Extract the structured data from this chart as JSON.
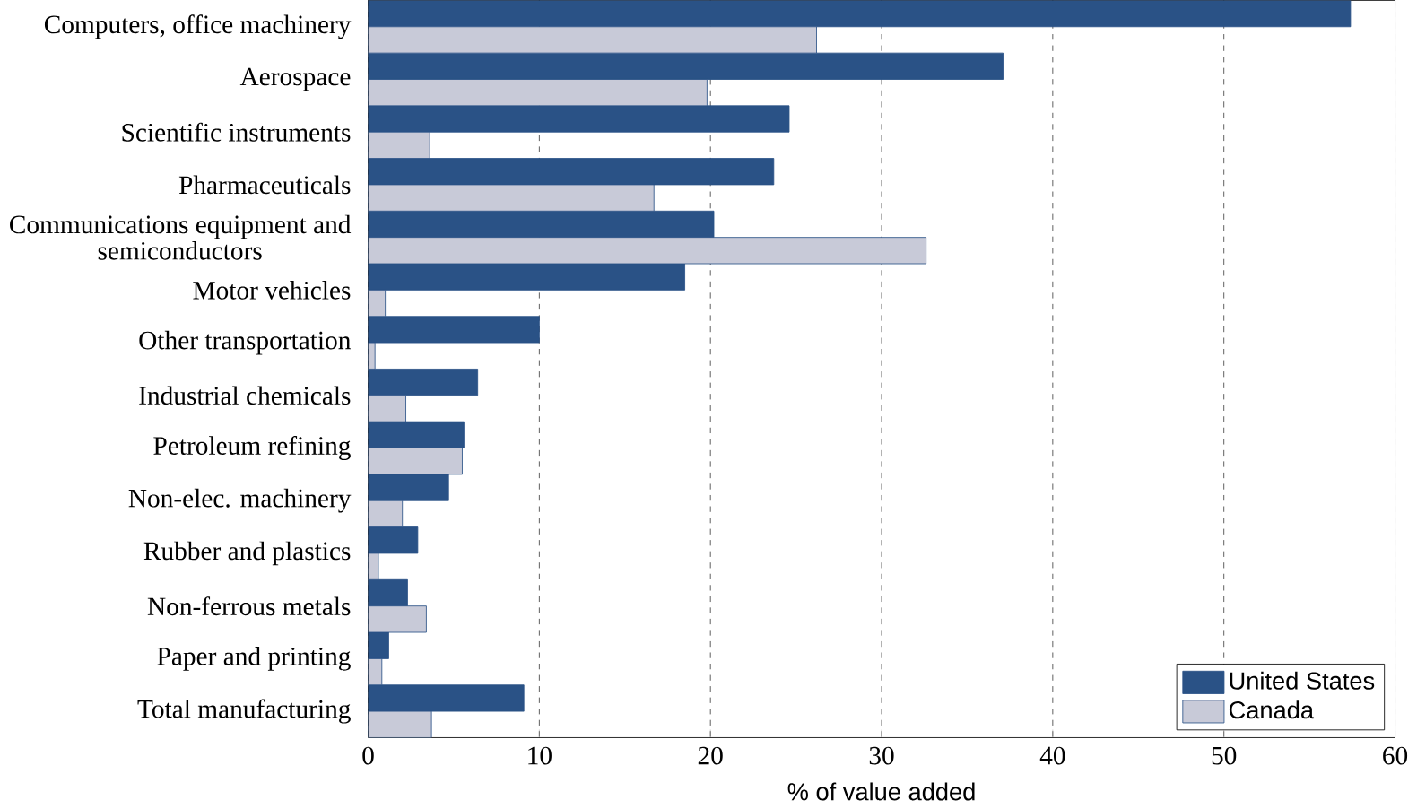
{
  "chart_data": {
    "type": "bar",
    "orientation": "horizontal",
    "xlabel": "% of value added",
    "categories": [
      "Computers, office machinery",
      "Aerospace",
      "Scientific instruments",
      "Pharmaceuticals",
      "Communications equipment and semiconductors",
      "Motor vehicles",
      "Other transportation",
      "Industrial chemicals",
      "Petroleum refining",
      "Non-elec. machinery",
      "Rubber and plastics",
      "Non-ferrous metals",
      "Paper and printing",
      "Total manufacturing"
    ],
    "series": [
      {
        "name": "United States",
        "color": "#2a5286",
        "values": [
          57.4,
          37.1,
          24.6,
          23.7,
          20.2,
          18.5,
          10.0,
          6.4,
          5.6,
          4.7,
          2.9,
          2.3,
          1.2,
          9.1
        ]
      },
      {
        "name": "Canada",
        "color": "#c8cad8",
        "values": [
          26.2,
          19.8,
          3.6,
          16.7,
          32.6,
          1.0,
          0.4,
          2.2,
          5.5,
          2.0,
          0.6,
          3.4,
          0.8,
          3.7
        ]
      }
    ],
    "xlim": [
      0,
      60
    ],
    "xticks": [
      0,
      10,
      20,
      30,
      40,
      50,
      60
    ],
    "grid": "x",
    "legend": "bottom right"
  }
}
